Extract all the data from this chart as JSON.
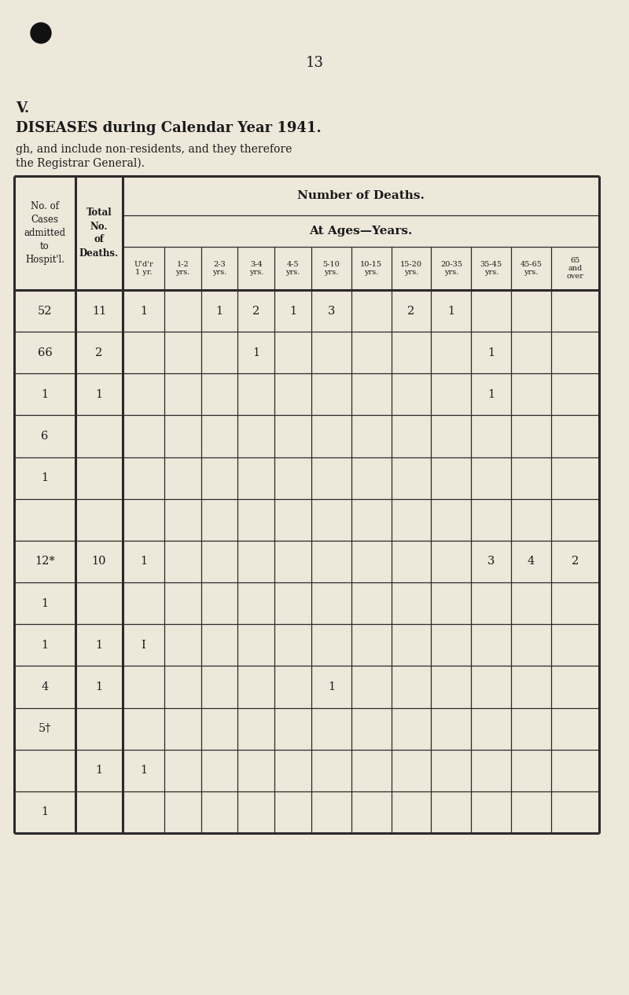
{
  "page_number": "13",
  "section_label": "V.",
  "title": "DISEASES during Calendar Year 1941.",
  "subtitle_line1": "gh, and include non-residents, and they therefore",
  "subtitle_line2": "the Registrar General).",
  "bg_color": "#ede8da",
  "text_color": "#1a1a1a",
  "bullet_color": "#111111",
  "header_nd": "Number of Deaths.",
  "header_at": "At Ages—Years.",
  "col_cases": "No. of\nCases\nadmitted\nto\nHospit'l.",
  "col_deaths": "Total\nNo.\nof\nDeaths.",
  "age_cols": [
    "U'd'r\n1 yr.",
    "1-2\nyrs.",
    "2-3\nyrs.",
    "3-4\nyrs.",
    "4-5\nyrs.",
    "5-10\nyrs.",
    "10-15\nyrs.",
    "15-20\nyrs.",
    "20-35\nyrs.",
    "35-45\nyrs.",
    "45-65\nyrs.",
    "65\nand\nover"
  ],
  "rows": [
    {
      "cases": "52",
      "deaths": "11",
      "cells": [
        "1",
        "",
        "1",
        "2",
        "1",
        "3",
        "",
        "2",
        "1",
        "",
        "",
        ""
      ]
    },
    {
      "cases": "66",
      "deaths": "2",
      "cells": [
        "",
        "",
        "",
        "1",
        "",
        "",
        "",
        "",
        "",
        "1",
        "",
        ""
      ]
    },
    {
      "cases": "1",
      "deaths": "1",
      "cells": [
        "",
        "",
        "",
        "",
        "",
        "",
        "",
        "",
        "",
        "1",
        "",
        ""
      ]
    },
    {
      "cases": "6",
      "deaths": "",
      "cells": [
        "",
        "",
        "",
        "",
        "",
        "",
        "",
        "",
        "",
        "",
        "",
        ""
      ]
    },
    {
      "cases": "1",
      "deaths": "",
      "cells": [
        "",
        "",
        "",
        "",
        "",
        "",
        "",
        "",
        "",
        "",
        "",
        ""
      ]
    },
    {
      "cases": "",
      "deaths": "",
      "cells": [
        "",
        "",
        "",
        "",
        "",
        "",
        "",
        "",
        "",
        "",
        "",
        ""
      ]
    },
    {
      "cases": "12*",
      "deaths": "10",
      "cells": [
        "1",
        "",
        "",
        "",
        "",
        "",
        "",
        "",
        "",
        "3",
        "4",
        "2"
      ]
    },
    {
      "cases": "1",
      "deaths": "",
      "cells": [
        "",
        "",
        "",
        "",
        "",
        "",
        "",
        "",
        "",
        "",
        "",
        ""
      ]
    },
    {
      "cases": "1",
      "deaths": "1",
      "cells": [
        "I",
        "",
        "",
        "",
        "",
        "",
        "",
        "",
        "",
        "",
        "",
        ""
      ]
    },
    {
      "cases": "4",
      "deaths": "1",
      "cells": [
        "",
        "",
        "",
        "",
        "",
        "1",
        "",
        "",
        "",
        "",
        "",
        ""
      ]
    },
    {
      "cases": "5†",
      "deaths": "",
      "cells": [
        "",
        "",
        "",
        "",
        "",
        "",
        "",
        "",
        "",
        "",
        "",
        ""
      ]
    },
    {
      "cases": "",
      "deaths": "1",
      "cells": [
        "1",
        "",
        "",
        "",
        "",
        "",
        "",
        "",
        "",
        "",
        "",
        ""
      ]
    },
    {
      "cases": "1",
      "deaths": "",
      "cells": [
        "",
        "",
        "",
        "",
        "",
        "",
        "",
        "",
        "",
        "",
        "",
        ""
      ]
    }
  ]
}
